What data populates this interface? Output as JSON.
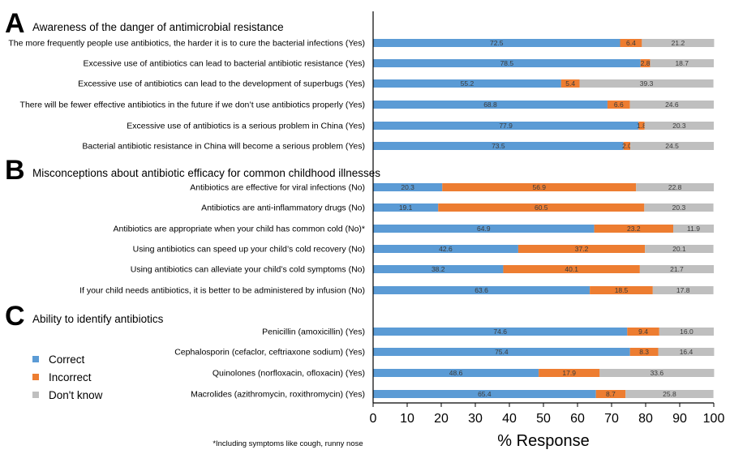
{
  "chart_data": {
    "type": "bar",
    "orientation": "horizontal",
    "stacked": true,
    "xlabel": "% Response",
    "xlim": [
      0,
      100
    ],
    "xticks": [
      "0",
      "10",
      "20",
      "30",
      "40",
      "50",
      "60",
      "70",
      "80",
      "90",
      "100"
    ],
    "grid": false,
    "legend_position": "left",
    "series": [
      {
        "name": "Correct",
        "color": "#5b9bd5"
      },
      {
        "name": "Incorrect",
        "color": "#ed7d31"
      },
      {
        "name": "Don't know",
        "color": "#bfbfbf"
      }
    ],
    "sections": [
      {
        "letter": "A",
        "title": "Awareness of the danger of antimicrobial resistance",
        "items": [
          {
            "label": "The more frequently people use antibiotics, the harder it is to cure the bacterial infections (Yes)",
            "values": [
              72.5,
              6.4,
              21.2
            ]
          },
          {
            "label": "Excessive use of antibiotics can lead to bacterial antibiotic resistance (Yes)",
            "values": [
              78.5,
              2.8,
              18.7
            ]
          },
          {
            "label": "Excessive use of antibiotics can lead to the development of superbugs (Yes)",
            "values": [
              55.2,
              5.4,
              39.3
            ]
          },
          {
            "label": "There will be fewer effective antibiotics in the future if we don’t use antibiotics properly (Yes)",
            "values": [
              68.8,
              6.6,
              24.6
            ]
          },
          {
            "label": "Excessive use of antibiotics is a serious problem in China (Yes)",
            "values": [
              77.9,
              1.8,
              20.3
            ]
          },
          {
            "label": "Bacterial antibiotic resistance in China will become a serious problem (Yes)",
            "values": [
              73.5,
              2.0,
              24.5
            ]
          }
        ]
      },
      {
        "letter": "B",
        "title": "Misconceptions about antibiotic efficacy for common childhood illnesses",
        "items": [
          {
            "label": "Antibiotics are effective for viral infections (No)",
            "values": [
              20.3,
              56.9,
              22.8
            ]
          },
          {
            "label": "Antibiotics are anti-inflammatory drugs (No)",
            "values": [
              19.1,
              60.5,
              20.3
            ]
          },
          {
            "label": "Antibiotics are appropriate when your child has common cold (No)*",
            "values": [
              64.9,
              23.2,
              11.9
            ]
          },
          {
            "label": "Using antibiotics can speed up your child’s cold recovery (No)",
            "values": [
              42.6,
              37.2,
              20.1
            ]
          },
          {
            "label": "Using antibiotics can alleviate your child’s cold symptoms (No)",
            "values": [
              38.2,
              40.1,
              21.7
            ]
          },
          {
            "label": "If your child needs antibiotics, it is better to be administered by infusion (No)",
            "values": [
              63.6,
              18.5,
              17.8
            ]
          }
        ]
      },
      {
        "letter": "C",
        "title": "Ability to identify antibiotics",
        "items": [
          {
            "label": "Penicillin (amoxicillin) (Yes)",
            "values": [
              74.6,
              9.4,
              16.0
            ]
          },
          {
            "label": "Cephalosporin (cefaclor, ceftriaxone sodium) (Yes)",
            "values": [
              75.4,
              8.3,
              16.4
            ]
          },
          {
            "label": "Quinolones (norfloxacin, ofloxacin) (Yes)",
            "values": [
              48.6,
              17.9,
              33.6
            ]
          },
          {
            "label": "Macrolides (azithromycin, roxithromycin) (Yes)",
            "values": [
              65.4,
              8.7,
              25.8
            ]
          }
        ]
      }
    ],
    "footnote": "*Including symptoms like cough, runny nose"
  }
}
